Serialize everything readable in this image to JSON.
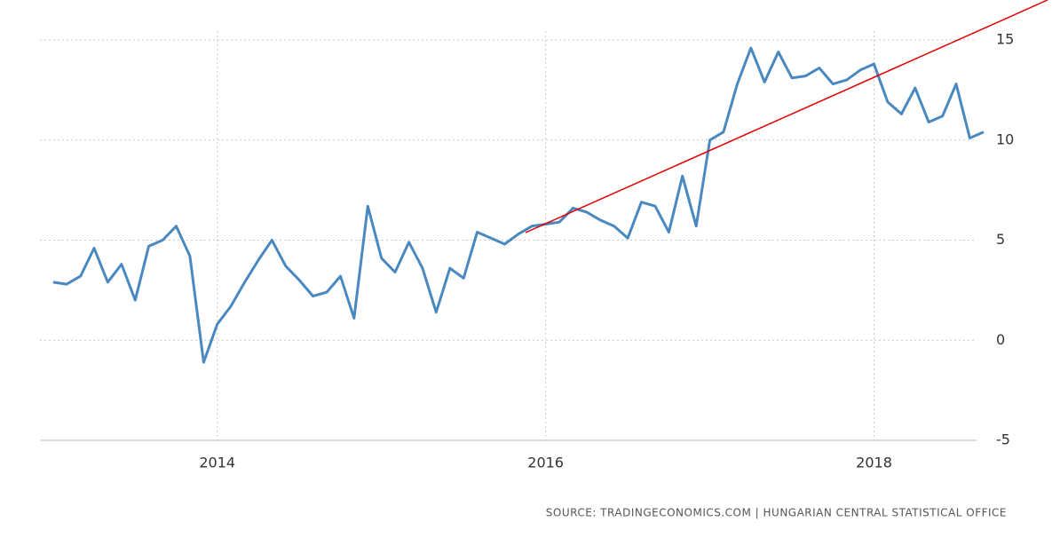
{
  "chart_data": {
    "type": "line",
    "x": [
      2013,
      2013.083,
      2013.167,
      2013.25,
      2013.333,
      2013.417,
      2013.5,
      2013.583,
      2013.667,
      2013.75,
      2013.833,
      2013.917,
      2014,
      2014.083,
      2014.167,
      2014.25,
      2014.333,
      2014.417,
      2014.5,
      2014.583,
      2014.667,
      2014.75,
      2014.833,
      2014.917,
      2015,
      2015.083,
      2015.167,
      2015.25,
      2015.333,
      2015.417,
      2015.5,
      2015.583,
      2015.667,
      2015.75,
      2015.833,
      2015.917,
      2016,
      2016.083,
      2016.167,
      2016.25,
      2016.333,
      2016.417,
      2016.5,
      2016.583,
      2016.667,
      2016.75,
      2016.833,
      2016.917,
      2017,
      2017.083,
      2017.167,
      2017.25,
      2017.333,
      2017.417,
      2017.5,
      2017.583,
      2017.667,
      2017.75,
      2017.833,
      2017.917,
      2018,
      2018.083,
      2018.167,
      2018.25,
      2018.333,
      2018.417,
      2018.5,
      2018.583,
      2018.667
    ],
    "series": [
      {
        "color": "#4a88c0",
        "values": [
          2.9,
          2.8,
          3.2,
          4.6,
          2.9,
          3.8,
          2.0,
          4.7,
          5.0,
          5.7,
          4.2,
          -1.1,
          0.8,
          1.7,
          2.9,
          4.0,
          5.0,
          3.7,
          3.0,
          2.2,
          2.4,
          3.2,
          1.1,
          6.7,
          4.1,
          3.4,
          4.9,
          3.6,
          1.4,
          3.6,
          3.1,
          5.4,
          5.1,
          4.8,
          5.3,
          5.7,
          5.8,
          5.9,
          6.6,
          6.4,
          6.0,
          5.7,
          5.1,
          6.9,
          6.7,
          5.4,
          8.2,
          5.7,
          10.0,
          10.4,
          12.8,
          14.6,
          12.9,
          14.4,
          13.1,
          13.2,
          13.6,
          12.8,
          13.0,
          13.5,
          13.8,
          11.9,
          11.3,
          12.6,
          10.9,
          11.2,
          12.8,
          10.1,
          10.4
        ]
      }
    ],
    "xlim": [
      2012.92,
      2018.7
    ],
    "xticks": [
      2014,
      2016,
      2018
    ],
    "ylim": [
      -5,
      15
    ],
    "yticks": [
      -5,
      0,
      5,
      10,
      15
    ],
    "grid": true,
    "source": "SOURCE: TRADINGECONOMICS.COM  |  HUNGARIAN CENTRAL STATISTICAL OFFICE"
  }
}
